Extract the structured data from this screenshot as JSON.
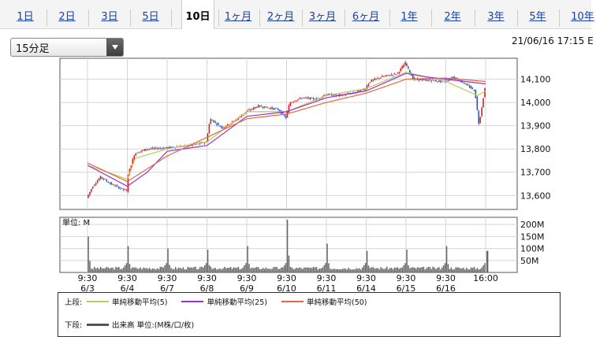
{
  "tabs": [
    {
      "label": "1日",
      "active": false
    },
    {
      "label": "2日",
      "active": false
    },
    {
      "label": "3日",
      "active": false
    },
    {
      "label": "5日",
      "active": false
    },
    {
      "label": "10日",
      "active": true
    },
    {
      "label": "1ヶ月",
      "active": false
    },
    {
      "label": "2ヶ月",
      "active": false
    },
    {
      "label": "3ヶ月",
      "active": false
    },
    {
      "label": "6ヶ月",
      "active": false
    },
    {
      "label": "1年",
      "active": false
    },
    {
      "label": "2年",
      "active": false
    },
    {
      "label": "3年",
      "active": false
    },
    {
      "label": "5年",
      "active": false
    },
    {
      "label": "10年",
      "active": false
    }
  ],
  "interval_select": {
    "value": "15分足"
  },
  "timestamp": "21/06/16 17:15 E",
  "chart_data": [
    {
      "type": "line",
      "title": "",
      "ylabel": "",
      "ylim": [
        13540,
        14190
      ],
      "yticks": [
        13600,
        13700,
        13800,
        13900,
        14000,
        14100
      ],
      "ytick_labels": [
        "13,600",
        "13,700",
        "13,800",
        "13,900",
        "14,000",
        "14,100"
      ],
      "x_session_times": [
        "9:30",
        "9:30",
        "9:30",
        "9:30",
        "9:30",
        "9:30",
        "9:30",
        "9:30",
        "9:30",
        "9:30",
        "16:00"
      ],
      "x_session_dates": [
        "6/3",
        "6/4",
        "6/7",
        "6/8",
        "6/9",
        "6/10",
        "6/11",
        "6/14",
        "6/15",
        "6/16",
        ""
      ],
      "price_path": [
        [
          0,
          13590
        ],
        [
          0.15,
          13640
        ],
        [
          0.35,
          13680
        ],
        [
          0.6,
          13650
        ],
        [
          1.0,
          13620
        ],
        [
          1.02,
          13680
        ],
        [
          1.2,
          13780
        ],
        [
          1.5,
          13800
        ],
        [
          2.0,
          13805
        ],
        [
          2.6,
          13815
        ],
        [
          3.0,
          13830
        ],
        [
          3.1,
          13930
        ],
        [
          3.4,
          13890
        ],
        [
          3.7,
          13920
        ],
        [
          4.0,
          13960
        ],
        [
          4.3,
          13985
        ],
        [
          4.8,
          13970
        ],
        [
          5.0,
          13935
        ],
        [
          5.1,
          14000
        ],
        [
          5.4,
          14020
        ],
        [
          5.8,
          14015
        ],
        [
          6.0,
          14035
        ],
        [
          6.3,
          14030
        ],
        [
          6.7,
          14040
        ],
        [
          7.0,
          14060
        ],
        [
          7.1,
          14090
        ],
        [
          7.4,
          14110
        ],
        [
          7.8,
          14125
        ],
        [
          8.0,
          14170
        ],
        [
          8.2,
          14100
        ],
        [
          8.6,
          14095
        ],
        [
          9.0,
          14090
        ],
        [
          9.2,
          14110
        ],
        [
          9.5,
          14080
        ],
        [
          9.75,
          14050
        ],
        [
          9.85,
          13905
        ],
        [
          10.0,
          14060
        ]
      ],
      "series": [
        {
          "name": "単純移動平均(5)",
          "color": "#b8cc5a",
          "points": [
            [
              0,
              13730
            ],
            [
              1.0,
              13670
            ],
            [
              1.2,
              13760
            ],
            [
              2.0,
              13800
            ],
            [
              3.0,
              13830
            ],
            [
              4.0,
              13960
            ],
            [
              5.0,
              13960
            ],
            [
              6.0,
              14030
            ],
            [
              7.0,
              14060
            ],
            [
              8.0,
              14130
            ],
            [
              9.0,
              14090
            ],
            [
              9.8,
              14030
            ],
            [
              10.0,
              14050
            ]
          ]
        },
        {
          "name": "単純移動平均(25)",
          "color": "#9b30d9",
          "points": [
            [
              0,
              13730
            ],
            [
              1.0,
              13640
            ],
            [
              1.5,
              13700
            ],
            [
              2.0,
              13790
            ],
            [
              3.0,
              13815
            ],
            [
              4.0,
              13940
            ],
            [
              5.0,
              13960
            ],
            [
              6.0,
              14020
            ],
            [
              7.0,
              14050
            ],
            [
              8.0,
              14125
            ],
            [
              8.5,
              14110
            ],
            [
              9.0,
              14100
            ],
            [
              10.0,
              14080
            ]
          ]
        },
        {
          "name": "単純移動平均(50)",
          "color": "#e06a3a",
          "points": [
            [
              0,
              13740
            ],
            [
              1.0,
              13660
            ],
            [
              2.0,
              13770
            ],
            [
              3.0,
              13850
            ],
            [
              4.0,
              13930
            ],
            [
              5.0,
              13950
            ],
            [
              6.0,
              14000
            ],
            [
              7.0,
              14040
            ],
            [
              8.0,
              14100
            ],
            [
              9.0,
              14105
            ],
            [
              10.0,
              14090
            ]
          ]
        }
      ]
    },
    {
      "type": "bar",
      "title": "単位: M",
      "ylim": [
        0,
        230
      ],
      "yticks": [
        50,
        100,
        150,
        200
      ],
      "ytick_labels": [
        "50M",
        "100M",
        "150M",
        "200M"
      ],
      "session_peaks": [
        150,
        110,
        100,
        95,
        110,
        220,
        120,
        90,
        95,
        110,
        90
      ],
      "series": [
        {
          "name": "出来高 単位:(M株/口/枚)",
          "color": "#666666"
        }
      ]
    }
  ],
  "legend": {
    "upper_label": "上段:",
    "lower_label": "下段:",
    "upper_items": [
      {
        "label": "単純移動平均(5)",
        "color": "#b8cc5a"
      },
      {
        "label": "単純移動平均(25)",
        "color": "#9b30d9"
      },
      {
        "label": "単純移動平均(50)",
        "color": "#e06a3a"
      }
    ],
    "lower_items": [
      {
        "label": "出来高 単位:(M株/口/枚)",
        "color": "#555555"
      }
    ]
  }
}
